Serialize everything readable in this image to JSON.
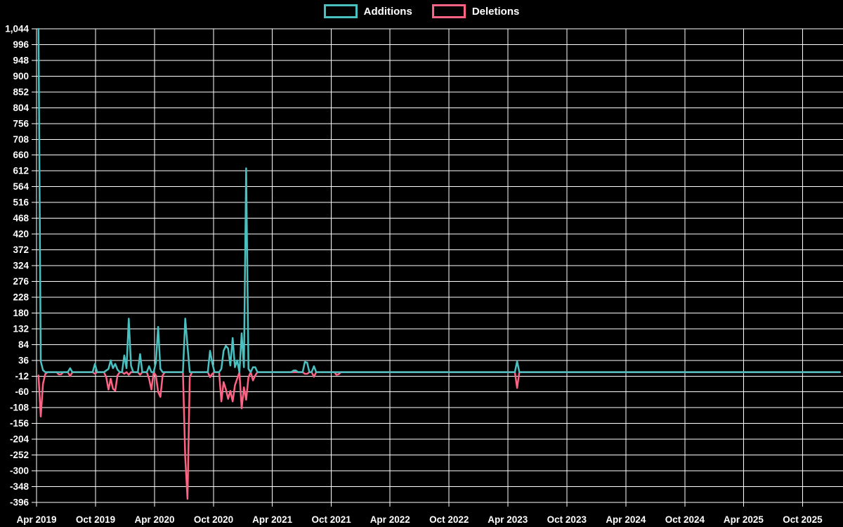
{
  "legend": {
    "items": [
      {
        "label": "Additions",
        "color": "#4bc0c0"
      },
      {
        "label": "Deletions",
        "color": "#ff6384"
      }
    ]
  },
  "chart_data": {
    "type": "line",
    "title": "",
    "background_color": "#000000",
    "grid_color": "#ffffff",
    "text_color": "#ffffff",
    "legend_position": "top",
    "grid": true,
    "x_axis": {
      "type": "time",
      "tick_labels": [
        "Apr 2019",
        "Oct 2019",
        "Apr 2020",
        "Oct 2020",
        "Apr 2021",
        "Oct 2021",
        "Apr 2022",
        "Oct 2022",
        "Apr 2023",
        "Oct 2023",
        "Apr 2024",
        "Oct 2024",
        "Apr 2025",
        "Oct 2025"
      ],
      "data_start": "2019-04-07",
      "data_end": "2026-01-25"
    },
    "y_axis": {
      "min": -396,
      "max": 1044,
      "step": 48,
      "tick_labels": [
        "1,044",
        "996",
        "948",
        "900",
        "852",
        "804",
        "756",
        "708",
        "660",
        "612",
        "564",
        "516",
        "468",
        "420",
        "372",
        "324",
        "276",
        "228",
        "180",
        "132",
        "84",
        "36",
        "-12",
        "-60",
        "-108",
        "-156",
        "-204",
        "-252",
        "-300",
        "-348",
        "-396"
      ]
    },
    "series": [
      {
        "name": "Additions",
        "color": "#4bc0c0"
      },
      {
        "name": "Deletions",
        "color": "#ff6384"
      }
    ],
    "points_note": "Weekly series; weeks not listed below are 0 for both additions and deletions.",
    "points": [
      {
        "week": "2019-04-07",
        "additions": 1044,
        "deletions": -10
      },
      {
        "week": "2019-04-14",
        "additions": 33,
        "deletions": -135
      },
      {
        "week": "2019-04-21",
        "additions": 6,
        "deletions": -35
      },
      {
        "week": "2019-04-28",
        "additions": 0,
        "deletions": -6
      },
      {
        "week": "2019-06-09",
        "additions": 0,
        "deletions": -7
      },
      {
        "week": "2019-06-16",
        "additions": 0,
        "deletions": -7
      },
      {
        "week": "2019-07-14",
        "additions": 12,
        "deletions": -12
      },
      {
        "week": "2019-09-29",
        "additions": 25,
        "deletions": -5
      },
      {
        "week": "2019-11-03",
        "additions": 5,
        "deletions": -15
      },
      {
        "week": "2019-11-10",
        "additions": 10,
        "deletions": -53
      },
      {
        "week": "2019-11-17",
        "additions": 36,
        "deletions": -20
      },
      {
        "week": "2019-11-24",
        "additions": 12,
        "deletions": -50
      },
      {
        "week": "2019-12-01",
        "additions": 25,
        "deletions": -57
      },
      {
        "week": "2019-12-08",
        "additions": 8,
        "deletions": -10
      },
      {
        "week": "2019-12-29",
        "additions": 51,
        "deletions": -5
      },
      {
        "week": "2020-01-05",
        "additions": 12,
        "deletions": 0
      },
      {
        "week": "2020-01-12",
        "additions": 163,
        "deletions": -8
      },
      {
        "week": "2020-01-19",
        "additions": 20,
        "deletions": 0
      },
      {
        "week": "2020-02-16",
        "additions": 55,
        "deletions": -8
      },
      {
        "week": "2020-03-15",
        "additions": 18,
        "deletions": -20
      },
      {
        "week": "2020-03-22",
        "additions": 0,
        "deletions": -53
      },
      {
        "week": "2020-04-05",
        "additions": 30,
        "deletions": -10
      },
      {
        "week": "2020-04-12",
        "additions": 138,
        "deletions": -60
      },
      {
        "week": "2020-04-19",
        "additions": 10,
        "deletions": -75
      },
      {
        "week": "2020-04-26",
        "additions": 0,
        "deletions": -10
      },
      {
        "week": "2020-07-05",
        "additions": 163,
        "deletions": -260
      },
      {
        "week": "2020-07-12",
        "additions": 80,
        "deletions": -385
      },
      {
        "week": "2020-07-19",
        "additions": 0,
        "deletions": -15
      },
      {
        "week": "2020-09-20",
        "additions": 65,
        "deletions": -15
      },
      {
        "week": "2020-09-27",
        "additions": 27,
        "deletions": -5
      },
      {
        "week": "2020-10-25",
        "additions": 10,
        "deletions": -89
      },
      {
        "week": "2020-11-01",
        "additions": 65,
        "deletions": -30
      },
      {
        "week": "2020-11-08",
        "additions": 80,
        "deletions": -52
      },
      {
        "week": "2020-11-15",
        "additions": 72,
        "deletions": -81
      },
      {
        "week": "2020-11-22",
        "additions": 20,
        "deletions": -57
      },
      {
        "week": "2020-11-29",
        "additions": 104,
        "deletions": -89
      },
      {
        "week": "2020-12-06",
        "additions": 15,
        "deletions": -40
      },
      {
        "week": "2020-12-13",
        "additions": 36,
        "deletions": -20
      },
      {
        "week": "2020-12-27",
        "additions": 118,
        "deletions": -110
      },
      {
        "week": "2021-01-03",
        "additions": 15,
        "deletions": -46
      },
      {
        "week": "2021-01-10",
        "additions": 620,
        "deletions": -84
      },
      {
        "week": "2021-01-17",
        "additions": 10,
        "deletions": -15
      },
      {
        "week": "2021-01-31",
        "additions": 15,
        "deletions": -25
      },
      {
        "week": "2021-02-07",
        "additions": 15,
        "deletions": -10
      },
      {
        "week": "2021-06-06",
        "additions": 5,
        "deletions": 0
      },
      {
        "week": "2021-06-13",
        "additions": 5,
        "deletions": 0
      },
      {
        "week": "2021-07-11",
        "additions": 31,
        "deletions": -5
      },
      {
        "week": "2021-07-18",
        "additions": 29,
        "deletions": -5
      },
      {
        "week": "2021-08-08",
        "additions": 18,
        "deletions": -14
      },
      {
        "week": "2021-10-17",
        "additions": 0,
        "deletions": -8
      },
      {
        "week": "2021-10-24",
        "additions": 0,
        "deletions": -6
      },
      {
        "week": "2023-04-30",
        "additions": 33,
        "deletions": -48
      }
    ]
  }
}
